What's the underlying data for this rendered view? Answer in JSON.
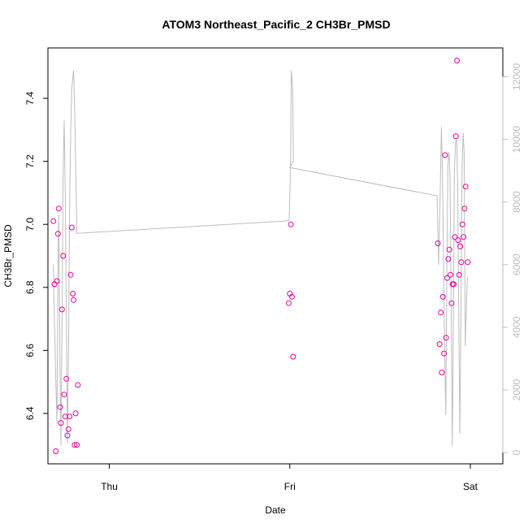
{
  "chart_data": {
    "type": "scatter",
    "title": "ATOM3 Northeast_Pacific_2 CH3Br_PMSD",
    "xlabel": "Date",
    "ylabel": "CH3Br_PMSD",
    "x_ticks": [
      "Thu",
      "Fri",
      "Sat"
    ],
    "y_ticks": [
      "6.4",
      "6.6",
      "6.8",
      "7.0",
      "7.2",
      "7.4"
    ],
    "y2_ticks": [
      "0",
      "2000",
      "4000",
      "6000",
      "8000",
      "10000",
      "12000"
    ],
    "xlim": [
      -0.17,
      1.09
    ],
    "ylim": [
      6.24,
      7.56
    ],
    "y2lim": [
      -360,
      12920
    ],
    "colors": {
      "points": "#e6009e",
      "line": "#bdbdbd",
      "axes": "#000000",
      "right_axis": "#bdbdbd"
    },
    "points": [
      [
        -0.155,
        7.01
      ],
      [
        -0.152,
        6.81
      ],
      [
        -0.148,
        6.28
      ],
      [
        -0.145,
        6.82
      ],
      [
        -0.142,
        6.97
      ],
      [
        -0.14,
        7.05
      ],
      [
        -0.136,
        6.42
      ],
      [
        -0.134,
        6.37
      ],
      [
        -0.131,
        6.73
      ],
      [
        -0.128,
        6.9
      ],
      [
        -0.125,
        6.46
      ],
      [
        -0.122,
        6.39
      ],
      [
        -0.119,
        6.51
      ],
      [
        -0.116,
        6.33
      ],
      [
        -0.113,
        6.35
      ],
      [
        -0.11,
        6.39
      ],
      [
        -0.107,
        6.84
      ],
      [
        -0.104,
        6.99
      ],
      [
        -0.101,
        6.78
      ],
      [
        -0.099,
        6.76
      ],
      [
        -0.096,
        6.3
      ],
      [
        -0.093,
        6.4
      ],
      [
        -0.09,
        6.3
      ],
      [
        -0.087,
        6.49
      ],
      [
        0.497,
        6.75
      ],
      [
        0.5,
        6.78
      ],
      [
        0.503,
        7.0
      ],
      [
        0.506,
        6.77
      ],
      [
        0.509,
        6.58
      ],
      [
        0.91,
        6.94
      ],
      [
        0.915,
        6.62
      ],
      [
        0.918,
        6.72
      ],
      [
        0.921,
        6.53
      ],
      [
        0.924,
        6.77
      ],
      [
        0.927,
        6.59
      ],
      [
        0.93,
        7.22
      ],
      [
        0.933,
        6.64
      ],
      [
        0.936,
        6.83
      ],
      [
        0.939,
        6.89
      ],
      [
        0.942,
        6.92
      ],
      [
        0.945,
        6.84
      ],
      [
        0.948,
        6.75
      ],
      [
        0.951,
        6.81
      ],
      [
        0.954,
        6.81
      ],
      [
        0.957,
        6.96
      ],
      [
        0.96,
        7.28
      ],
      [
        0.963,
        7.52
      ],
      [
        0.966,
        6.95
      ],
      [
        0.969,
        6.84
      ],
      [
        0.972,
        6.93
      ],
      [
        0.975,
        6.88
      ],
      [
        0.978,
        7.0
      ],
      [
        0.981,
        6.96
      ],
      [
        0.984,
        7.05
      ],
      [
        0.987,
        7.12
      ],
      [
        0.993,
        6.88
      ]
    ],
    "line": [
      [
        -0.155,
        6000
      ],
      [
        -0.152,
        4200
      ],
      [
        -0.148,
        2200
      ],
      [
        -0.145,
        900
      ],
      [
        -0.142,
        5900
      ],
      [
        -0.14,
        7600
      ],
      [
        -0.137,
        3200
      ],
      [
        -0.134,
        200
      ],
      [
        -0.131,
        4000
      ],
      [
        -0.128,
        8800
      ],
      [
        -0.125,
        10600
      ],
      [
        -0.122,
        8400
      ],
      [
        -0.119,
        4200
      ],
      [
        -0.116,
        300
      ],
      [
        -0.113,
        3200
      ],
      [
        -0.11,
        7800
      ],
      [
        -0.107,
        10200
      ],
      [
        -0.104,
        11600
      ],
      [
        -0.101,
        12000
      ],
      [
        -0.099,
        12200
      ],
      [
        -0.096,
        11000
      ],
      [
        -0.093,
        9200
      ],
      [
        -0.09,
        7000
      ],
      [
        -0.087,
        7000
      ],
      [
        0.498,
        7400
      ],
      [
        0.502,
        9100
      ],
      [
        0.504,
        12200
      ],
      [
        0.508,
        11600
      ],
      [
        0.51,
        9300
      ],
      [
        0.5,
        9100
      ],
      [
        0.908,
        8200
      ],
      [
        0.912,
        6000
      ],
      [
        0.916,
        8000
      ],
      [
        0.92,
        10400
      ],
      [
        0.923,
        8800
      ],
      [
        0.926,
        6000
      ],
      [
        0.929,
        3200
      ],
      [
        0.932,
        1200
      ],
      [
        0.935,
        5800
      ],
      [
        0.938,
        9200
      ],
      [
        0.941,
        9600
      ],
      [
        0.944,
        8800
      ],
      [
        0.947,
        4600
      ],
      [
        0.95,
        200
      ],
      [
        0.953,
        4200
      ],
      [
        0.956,
        9000
      ],
      [
        0.959,
        9900
      ],
      [
        0.962,
        10000
      ],
      [
        0.965,
        8600
      ],
      [
        0.968,
        4200
      ],
      [
        0.971,
        600
      ],
      [
        0.974,
        4400
      ],
      [
        0.977,
        9000
      ],
      [
        0.98,
        10200
      ],
      [
        0.983,
        9600
      ],
      [
        0.986,
        3400
      ],
      [
        0.989,
        4600
      ],
      [
        0.992,
        5600
      ]
    ]
  }
}
